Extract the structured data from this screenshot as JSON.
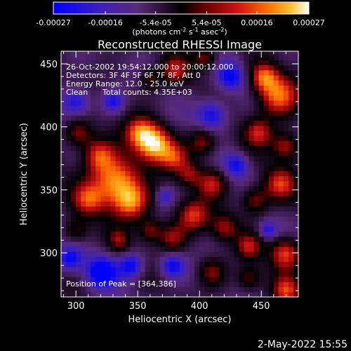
{
  "chart_data": {
    "type": "heatmap",
    "title": "Reconstructed RHESSI Image",
    "xlabel": "Heliocentric X (arcsec)",
    "ylabel": "Heliocentric Y (arcsec)",
    "xlim": [
      288,
      480
    ],
    "ylim": [
      265,
      460
    ],
    "x_ticks": [
      300,
      350,
      400,
      450
    ],
    "y_ticks": [
      300,
      350,
      400,
      450
    ],
    "colorbar": {
      "ticks": [
        "-0.00027",
        "-0.00016",
        "-5.4e-05",
        "5.4e-05",
        "0.00016",
        "0.00027"
      ],
      "range": [
        -0.00027,
        0.00027
      ],
      "unit_label_parts": [
        "(photons cm",
        "-2",
        " s",
        "-1",
        " asec",
        "-2",
        ")"
      ]
    },
    "colors": [
      "#0000ff",
      "#4b2aa8",
      "#5a2a7a",
      "#1a0c20",
      "#000000",
      "#6a0000",
      "#cc1010",
      "#ff6a00",
      "#ffc020",
      "#ffffff"
    ],
    "annotations": {
      "time_range": "26-Oct-2002 19:54:12.000 to 20:00:12.000",
      "detectors": "Detectors: 3F 4F 5F 6F 7F 8F, Att 0",
      "energy_range": "Energy Range: 12.0 - 25.0 keV",
      "clean_label": "Clean",
      "total_counts": "Total counts: 4.35E+03",
      "peak": "Position of Peak = [364,386]"
    },
    "peak_position": [
      364,
      386
    ],
    "blobs": [
      {
        "x": 364,
        "y": 386,
        "r": 10,
        "v": 1.0
      },
      {
        "x": 332,
        "y": 357,
        "r": 14,
        "v": 0.95
      },
      {
        "x": 318,
        "y": 378,
        "r": 9,
        "v": 0.6
      },
      {
        "x": 345,
        "y": 340,
        "r": 10,
        "v": 0.7
      },
      {
        "x": 310,
        "y": 342,
        "r": 9,
        "v": 0.55
      },
      {
        "x": 352,
        "y": 396,
        "r": 9,
        "v": 0.7
      },
      {
        "x": 380,
        "y": 375,
        "r": 8,
        "v": 0.5
      },
      {
        "x": 403,
        "y": 388,
        "r": 8,
        "v": 0.55
      },
      {
        "x": 392,
        "y": 362,
        "r": 7,
        "v": 0.45
      },
      {
        "x": 410,
        "y": 355,
        "r": 8,
        "v": 0.55
      },
      {
        "x": 395,
        "y": 330,
        "r": 9,
        "v": 0.65
      },
      {
        "x": 378,
        "y": 312,
        "r": 8,
        "v": 0.5
      },
      {
        "x": 360,
        "y": 318,
        "r": 7,
        "v": 0.5
      },
      {
        "x": 420,
        "y": 320,
        "r": 8,
        "v": 0.5
      },
      {
        "x": 445,
        "y": 342,
        "r": 8,
        "v": 0.55
      },
      {
        "x": 463,
        "y": 425,
        "r": 12,
        "v": 0.8
      },
      {
        "x": 452,
        "y": 440,
        "r": 8,
        "v": 0.65
      },
      {
        "x": 448,
        "y": 396,
        "r": 8,
        "v": 0.55
      },
      {
        "x": 470,
        "y": 385,
        "r": 8,
        "v": 0.6
      },
      {
        "x": 465,
        "y": 355,
        "r": 9,
        "v": 0.6
      },
      {
        "x": 470,
        "y": 300,
        "r": 9,
        "v": 0.75
      },
      {
        "x": 440,
        "y": 305,
        "r": 7,
        "v": 0.5
      },
      {
        "x": 380,
        "y": 445,
        "r": 8,
        "v": 0.5
      },
      {
        "x": 405,
        "y": 455,
        "r": 7,
        "v": 0.5
      },
      {
        "x": 360,
        "y": 438,
        "r": 6,
        "v": 0.4
      },
      {
        "x": 302,
        "y": 395,
        "r": 8,
        "v": 0.55
      },
      {
        "x": 300,
        "y": 318,
        "r": 7,
        "v": 0.45
      },
      {
        "x": 335,
        "y": 310,
        "r": 6,
        "v": 0.4
      },
      {
        "x": 410,
        "y": 285,
        "r": 8,
        "v": 0.45
      },
      {
        "x": 440,
        "y": 280,
        "r": 7,
        "v": 0.45
      },
      {
        "x": 470,
        "y": 270,
        "r": 8,
        "v": 0.6
      },
      {
        "x": 345,
        "y": 290,
        "r": 7,
        "v": -0.6
      },
      {
        "x": 320,
        "y": 285,
        "r": 9,
        "v": -0.65
      },
      {
        "x": 378,
        "y": 290,
        "r": 7,
        "v": -0.55
      },
      {
        "x": 425,
        "y": 440,
        "r": 8,
        "v": -0.55
      },
      {
        "x": 410,
        "y": 410,
        "r": 9,
        "v": -0.6
      },
      {
        "x": 300,
        "y": 420,
        "r": 8,
        "v": -0.55
      },
      {
        "x": 430,
        "y": 370,
        "r": 7,
        "v": -0.5
      },
      {
        "x": 295,
        "y": 295,
        "r": 7,
        "v": -0.55
      },
      {
        "x": 372,
        "y": 345,
        "r": 5,
        "v": -0.4
      },
      {
        "x": 455,
        "y": 318,
        "r": 5,
        "v": -0.45
      },
      {
        "x": 330,
        "y": 420,
        "r": 6,
        "v": -0.45
      }
    ]
  },
  "footer": {
    "timestamp": "2-May-2022 15:55"
  }
}
